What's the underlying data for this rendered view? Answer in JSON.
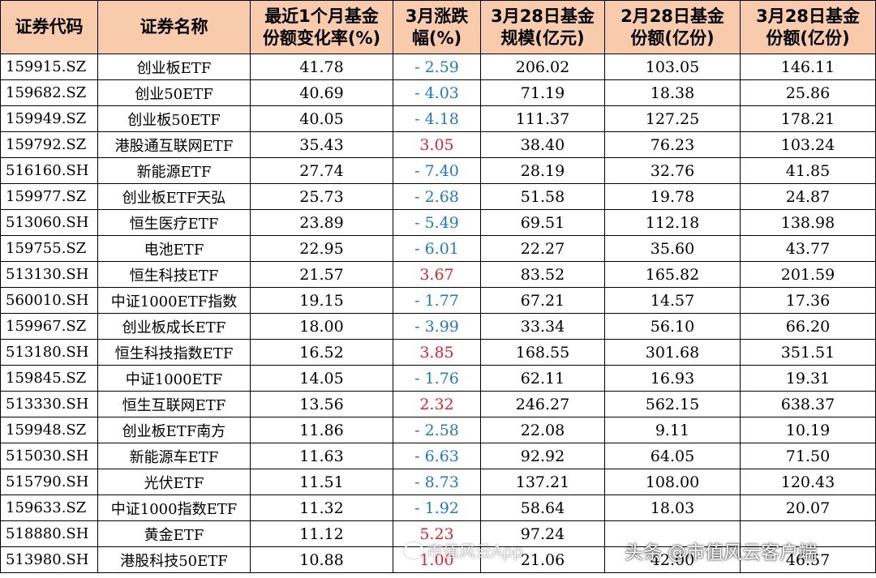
{
  "table": {
    "headers": [
      [
        "证券代码"
      ],
      [
        "证券名称"
      ],
      [
        "最近1个月基金",
        "份额变化率(%)"
      ],
      [
        "3月涨跌",
        "幅(%)"
      ],
      [
        "3月28日基金",
        "规模(亿元)"
      ],
      [
        "2月28日基金",
        "份额(亿份)"
      ],
      [
        "3月28日基金",
        "份额(亿份)"
      ]
    ],
    "rows": [
      [
        "159915.SZ",
        "创业板ETF",
        "41.78",
        "-2.59",
        "206.02",
        "103.05",
        "146.11"
      ],
      [
        "159682.SZ",
        "创业50ETF",
        "40.69",
        "-4.03",
        "71.19",
        "18.38",
        "25.86"
      ],
      [
        "159949.SZ",
        "创业板50ETF",
        "40.05",
        "-4.18",
        "111.37",
        "127.25",
        "178.21"
      ],
      [
        "159792.SZ",
        "港股通互联网ETF",
        "35.43",
        "3.05",
        "38.40",
        "76.23",
        "103.24"
      ],
      [
        "516160.SH",
        "新能源ETF",
        "27.74",
        "-7.40",
        "28.19",
        "32.76",
        "41.85"
      ],
      [
        "159977.SZ",
        "创业板ETF天弘",
        "25.73",
        "-2.68",
        "51.58",
        "19.78",
        "24.87"
      ],
      [
        "513060.SH",
        "恒生医疗ETF",
        "23.89",
        "-5.49",
        "69.51",
        "112.18",
        "138.98"
      ],
      [
        "159755.SZ",
        "电池ETF",
        "22.95",
        "-6.01",
        "22.27",
        "35.60",
        "43.77"
      ],
      [
        "513130.SH",
        "恒生科技ETF",
        "21.57",
        "3.67",
        "83.52",
        "165.82",
        "201.59"
      ],
      [
        "560010.SH",
        "中证1000ETF指数",
        "19.15",
        "-1.77",
        "67.21",
        "14.57",
        "17.36"
      ],
      [
        "159967.SZ",
        "创业板成长ETF",
        "18.00",
        "-3.99",
        "33.34",
        "56.10",
        "66.20"
      ],
      [
        "513180.SH",
        "恒生科技指数ETF",
        "16.52",
        "3.85",
        "168.55",
        "301.68",
        "351.51"
      ],
      [
        "159845.SZ",
        "中证1000ETF",
        "14.05",
        "-1.76",
        "62.11",
        "16.93",
        "19.31"
      ],
      [
        "513330.SH",
        "恒生互联网ETF",
        "13.56",
        "2.32",
        "246.27",
        "562.15",
        "638.37"
      ],
      [
        "159948.SZ",
        "创业板ETF南方",
        "11.86",
        "-2.58",
        "22.08",
        "9.11",
        "10.19"
      ],
      [
        "515030.SH",
        "新能源车ETF",
        "11.63",
        "-6.63",
        "92.92",
        "64.05",
        "71.50"
      ],
      [
        "515790.SH",
        "光伏ETF",
        "11.51",
        "-8.73",
        "137.21",
        "108.00",
        "120.43"
      ],
      [
        "159633.SZ",
        "中证1000指数ETF",
        "11.32",
        "-1.92",
        "58.64",
        "18.03",
        "20.07"
      ],
      [
        "518880.SH",
        "黄金ETF",
        "11.12",
        "5.23",
        "97.24",
        "",
        ""
      ],
      [
        "513980.SH",
        "港股科技50ETF",
        "10.88",
        "1.00",
        "21.06",
        "42.00",
        "46.57"
      ]
    ]
  },
  "colors": {
    "header_bg": "#f8cbad",
    "negative": "#1f77d0",
    "positive": "#e8202a"
  },
  "watermark": {
    "left_text": "市值风云App",
    "right_text": "头条 @市值风云客户端"
  }
}
